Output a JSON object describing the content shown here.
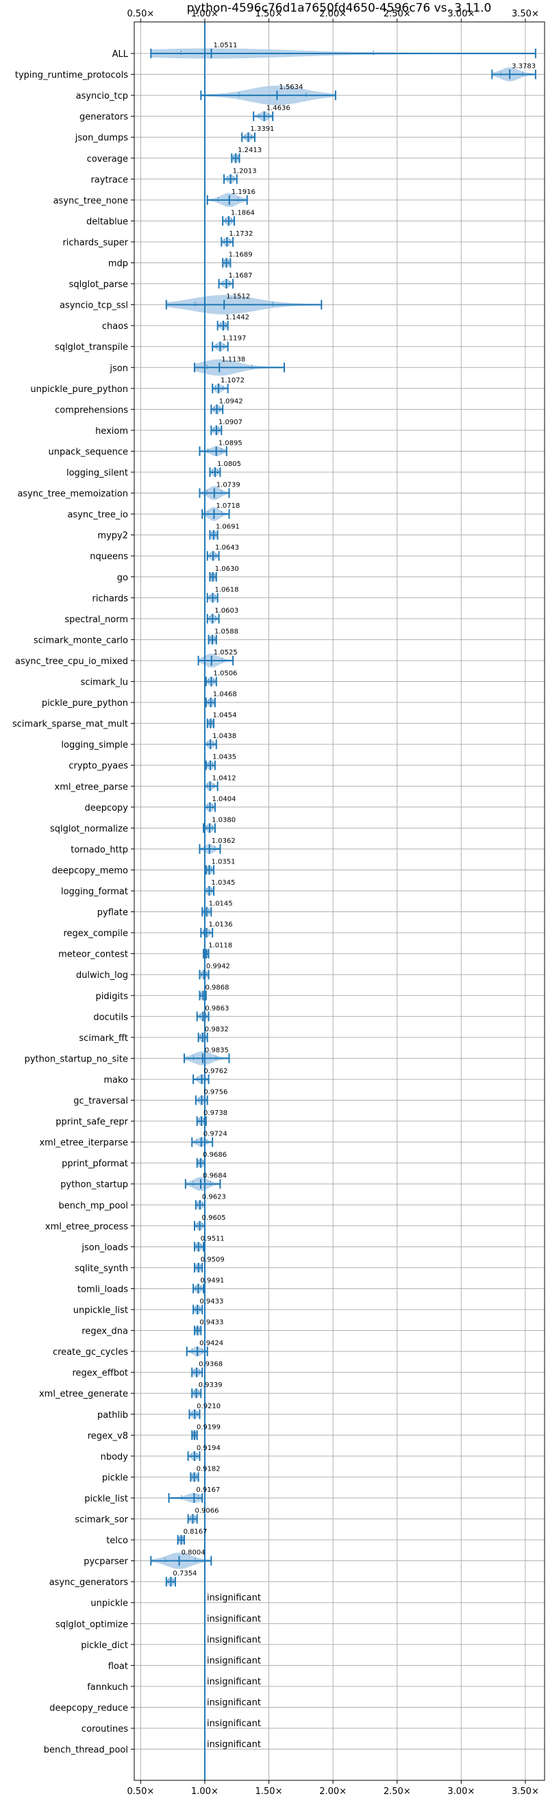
{
  "chart_data": {
    "type": "violin",
    "title": "python-4596c76d1a7650fd4650-4596c76 vs. 3.11.0",
    "xlim": [
      0.45,
      3.65
    ],
    "x_ticks": [
      0.5,
      1.0,
      1.5,
      2.0,
      2.5,
      3.0,
      3.5
    ],
    "x_tick_labels": [
      "0.50×",
      "1.00×",
      "1.50×",
      "2.00×",
      "2.50×",
      "3.00×",
      "3.50×"
    ],
    "reference_line": 1.0,
    "grid": true,
    "colors": {
      "violin": "#a6c8e6",
      "line": "#1f77b4",
      "grid": "#b0b0b0"
    },
    "insignificant_label": "insignificant",
    "benchmarks": [
      {
        "name": "ALL",
        "value": 1.0511,
        "label": "1.0511",
        "min": 0.58,
        "max": 3.58,
        "width": 0.07
      },
      {
        "name": "typing_runtime_protocols",
        "value": 3.3783,
        "label": "3.3783",
        "min": 3.24,
        "max": 3.58,
        "width": 0.1
      },
      {
        "name": "asyncio_tcp",
        "value": 1.5634,
        "label": "1.5634",
        "min": 0.97,
        "max": 2.02,
        "width": 0.3
      },
      {
        "name": "generators",
        "value": 1.4636,
        "label": "1.4636",
        "min": 1.38,
        "max": 1.53,
        "width": 0.07
      },
      {
        "name": "json_dumps",
        "value": 1.3391,
        "label": "1.3391",
        "min": 1.29,
        "max": 1.39,
        "width": 0.05
      },
      {
        "name": "coverage",
        "value": 1.2413,
        "label": "1.2413",
        "min": 1.21,
        "max": 1.27,
        "width": 0.04
      },
      {
        "name": "raytrace",
        "value": 1.2013,
        "label": "1.2013",
        "min": 1.15,
        "max": 1.25,
        "width": 0.05
      },
      {
        "name": "async_tree_none",
        "value": 1.1916,
        "label": "1.1916",
        "min": 1.02,
        "max": 1.33,
        "width": 0.1
      },
      {
        "name": "deltablue",
        "value": 1.1864,
        "label": "1.1864",
        "min": 1.14,
        "max": 1.23,
        "width": 0.05
      },
      {
        "name": "richards_super",
        "value": 1.1732,
        "label": "1.1732",
        "min": 1.13,
        "max": 1.22,
        "width": 0.05
      },
      {
        "name": "mdp",
        "value": 1.1689,
        "label": "1.1689",
        "min": 1.14,
        "max": 1.2,
        "width": 0.04
      },
      {
        "name": "sqlglot_parse",
        "value": 1.1687,
        "label": "1.1687",
        "min": 1.11,
        "max": 1.22,
        "width": 0.05
      },
      {
        "name": "asyncio_tcp_ssl",
        "value": 1.1512,
        "label": "1.1512",
        "min": 0.7,
        "max": 1.91,
        "width": 0.35
      },
      {
        "name": "chaos",
        "value": 1.1442,
        "label": "1.1442",
        "min": 1.1,
        "max": 1.18,
        "width": 0.04
      },
      {
        "name": "sqlglot_transpile",
        "value": 1.1197,
        "label": "1.1197",
        "min": 1.06,
        "max": 1.18,
        "width": 0.05
      },
      {
        "name": "json",
        "value": 1.1138,
        "label": "1.1138",
        "min": 0.92,
        "max": 1.62,
        "width": 0.12
      },
      {
        "name": "unpickle_pure_python",
        "value": 1.1072,
        "label": "1.1072",
        "min": 1.06,
        "max": 1.18,
        "width": 0.04
      },
      {
        "name": "comprehensions",
        "value": 1.0942,
        "label": "1.0942",
        "min": 1.05,
        "max": 1.14,
        "width": 0.05
      },
      {
        "name": "hexiom",
        "value": 1.0907,
        "label": "1.0907",
        "min": 1.05,
        "max": 1.13,
        "width": 0.05
      },
      {
        "name": "unpack_sequence",
        "value": 1.0895,
        "label": "1.0895",
        "min": 0.96,
        "max": 1.17,
        "width": 0.06
      },
      {
        "name": "logging_silent",
        "value": 1.0805,
        "label": "1.0805",
        "min": 1.04,
        "max": 1.12,
        "width": 0.05
      },
      {
        "name": "async_tree_memoization",
        "value": 1.0739,
        "label": "1.0739",
        "min": 0.96,
        "max": 1.19,
        "width": 0.1
      },
      {
        "name": "async_tree_io",
        "value": 1.0718,
        "label": "1.0718",
        "min": 0.98,
        "max": 1.19,
        "width": 0.1
      },
      {
        "name": "mypy2",
        "value": 1.0691,
        "label": "1.0691",
        "min": 1.04,
        "max": 1.1,
        "width": 0.04
      },
      {
        "name": "nqueens",
        "value": 1.0643,
        "label": "1.0643",
        "min": 1.02,
        "max": 1.11,
        "width": 0.05
      },
      {
        "name": "go",
        "value": 1.063,
        "label": "1.0630",
        "min": 1.04,
        "max": 1.09,
        "width": 0.04
      },
      {
        "name": "richards",
        "value": 1.0618,
        "label": "1.0618",
        "min": 1.02,
        "max": 1.1,
        "width": 0.05
      },
      {
        "name": "spectral_norm",
        "value": 1.0603,
        "label": "1.0603",
        "min": 1.02,
        "max": 1.11,
        "width": 0.05
      },
      {
        "name": "scimark_monte_carlo",
        "value": 1.0588,
        "label": "1.0588",
        "min": 1.03,
        "max": 1.09,
        "width": 0.04
      },
      {
        "name": "async_tree_cpu_io_mixed",
        "value": 1.0525,
        "label": "1.0525",
        "min": 0.95,
        "max": 1.22,
        "width": 0.1
      },
      {
        "name": "scimark_lu",
        "value": 1.0506,
        "label": "1.0506",
        "min": 1.01,
        "max": 1.09,
        "width": 0.04
      },
      {
        "name": "pickle_pure_python",
        "value": 1.0468,
        "label": "1.0468",
        "min": 1.01,
        "max": 1.08,
        "width": 0.04
      },
      {
        "name": "scimark_sparse_mat_mult",
        "value": 1.0454,
        "label": "1.0454",
        "min": 1.02,
        "max": 1.07,
        "width": 0.04
      },
      {
        "name": "logging_simple",
        "value": 1.0438,
        "label": "1.0438",
        "min": 1.0,
        "max": 1.09,
        "width": 0.04
      },
      {
        "name": "crypto_pyaes",
        "value": 1.0435,
        "label": "1.0435",
        "min": 1.01,
        "max": 1.08,
        "width": 0.04
      },
      {
        "name": "xml_etree_parse",
        "value": 1.0412,
        "label": "1.0412",
        "min": 1.0,
        "max": 1.1,
        "width": 0.05
      },
      {
        "name": "deepcopy",
        "value": 1.0404,
        "label": "1.0404",
        "min": 1.0,
        "max": 1.08,
        "width": 0.04
      },
      {
        "name": "sqlglot_normalize",
        "value": 1.038,
        "label": "1.0380",
        "min": 0.99,
        "max": 1.08,
        "width": 0.05
      },
      {
        "name": "tornado_http",
        "value": 1.0362,
        "label": "1.0362",
        "min": 0.96,
        "max": 1.12,
        "width": 0.07
      },
      {
        "name": "deepcopy_memo",
        "value": 1.0351,
        "label": "1.0351",
        "min": 1.01,
        "max": 1.07,
        "width": 0.04
      },
      {
        "name": "logging_format",
        "value": 1.0345,
        "label": "1.0345",
        "min": 1.0,
        "max": 1.07,
        "width": 0.04
      },
      {
        "name": "pyflate",
        "value": 1.0145,
        "label": "1.0145",
        "min": 0.98,
        "max": 1.05,
        "width": 0.04
      },
      {
        "name": "regex_compile",
        "value": 1.0136,
        "label": "1.0136",
        "min": 0.97,
        "max": 1.06,
        "width": 0.04
      },
      {
        "name": "meteor_contest",
        "value": 1.0118,
        "label": "1.0118",
        "min": 0.99,
        "max": 1.03,
        "width": 0.03
      },
      {
        "name": "dulwich_log",
        "value": 0.9942,
        "label": "0.9942",
        "min": 0.96,
        "max": 1.03,
        "width": 0.04
      },
      {
        "name": "pidigits",
        "value": 0.9868,
        "label": "0.9868",
        "min": 0.96,
        "max": 1.01,
        "width": 0.04
      },
      {
        "name": "docutils",
        "value": 0.9863,
        "label": "0.9863",
        "min": 0.94,
        "max": 1.03,
        "width": 0.05
      },
      {
        "name": "scimark_fft",
        "value": 0.9832,
        "label": "0.9832",
        "min": 0.95,
        "max": 1.02,
        "width": 0.04
      },
      {
        "name": "python_startup_no_site",
        "value": 0.9835,
        "label": "0.9835",
        "min": 0.84,
        "max": 1.19,
        "width": 0.1
      },
      {
        "name": "mako",
        "value": 0.9762,
        "label": "0.9762",
        "min": 0.91,
        "max": 1.03,
        "width": 0.06
      },
      {
        "name": "gc_traversal",
        "value": 0.9756,
        "label": "0.9756",
        "min": 0.93,
        "max": 1.02,
        "width": 0.05
      },
      {
        "name": "pprint_safe_repr",
        "value": 0.9738,
        "label": "0.9738",
        "min": 0.94,
        "max": 1.01,
        "width": 0.04
      },
      {
        "name": "xml_etree_iterparse",
        "value": 0.9724,
        "label": "0.9724",
        "min": 0.9,
        "max": 1.06,
        "width": 0.06
      },
      {
        "name": "pprint_pformat",
        "value": 0.9686,
        "label": "0.9686",
        "min": 0.94,
        "max": 1.0,
        "width": 0.04
      },
      {
        "name": "python_startup",
        "value": 0.9684,
        "label": "0.9684",
        "min": 0.85,
        "max": 1.12,
        "width": 0.1
      },
      {
        "name": "bench_mp_pool",
        "value": 0.9623,
        "label": "0.9623",
        "min": 0.93,
        "max": 1.0,
        "width": 0.04
      },
      {
        "name": "xml_etree_process",
        "value": 0.9605,
        "label": "0.9605",
        "min": 0.92,
        "max": 1.0,
        "width": 0.04
      },
      {
        "name": "json_loads",
        "value": 0.9511,
        "label": "0.9511",
        "min": 0.92,
        "max": 0.99,
        "width": 0.04
      },
      {
        "name": "sqlite_synth",
        "value": 0.9509,
        "label": "0.9509",
        "min": 0.92,
        "max": 0.98,
        "width": 0.04
      },
      {
        "name": "tomli_loads",
        "value": 0.9491,
        "label": "0.9491",
        "min": 0.91,
        "max": 0.99,
        "width": 0.05
      },
      {
        "name": "unpickle_list",
        "value": 0.9433,
        "label": "0.9433",
        "min": 0.91,
        "max": 0.98,
        "width": 0.04
      },
      {
        "name": "regex_dna",
        "value": 0.9433,
        "label": "0.9433",
        "min": 0.92,
        "max": 0.97,
        "width": 0.04
      },
      {
        "name": "create_gc_cycles",
        "value": 0.9424,
        "label": "0.9424",
        "min": 0.86,
        "max": 1.02,
        "width": 0.06
      },
      {
        "name": "regex_effbot",
        "value": 0.9368,
        "label": "0.9368",
        "min": 0.9,
        "max": 0.98,
        "width": 0.04
      },
      {
        "name": "xml_etree_generate",
        "value": 0.9339,
        "label": "0.9339",
        "min": 0.9,
        "max": 0.97,
        "width": 0.04
      },
      {
        "name": "pathlib",
        "value": 0.921,
        "label": "0.9210",
        "min": 0.88,
        "max": 0.96,
        "width": 0.05
      },
      {
        "name": "regex_v8",
        "value": 0.9199,
        "label": "0.9199",
        "min": 0.9,
        "max": 0.94,
        "width": 0.03
      },
      {
        "name": "nbody",
        "value": 0.9194,
        "label": "0.9194",
        "min": 0.87,
        "max": 0.96,
        "width": 0.05
      },
      {
        "name": "pickle",
        "value": 0.9182,
        "label": "0.9182",
        "min": 0.89,
        "max": 0.95,
        "width": 0.04
      },
      {
        "name": "pickle_list",
        "value": 0.9167,
        "label": "0.9167",
        "min": 0.72,
        "max": 0.98,
        "width": 0.05
      },
      {
        "name": "scimark_sor",
        "value": 0.9066,
        "label": "0.9066",
        "min": 0.87,
        "max": 0.94,
        "width": 0.04
      },
      {
        "name": "telco",
        "value": 0.8167,
        "label": "0.8167",
        "min": 0.79,
        "max": 0.84,
        "width": 0.04
      },
      {
        "name": "pycparser",
        "value": 0.8004,
        "label": "0.8004",
        "min": 0.58,
        "max": 1.05,
        "width": 0.12
      },
      {
        "name": "async_generators",
        "value": 0.7354,
        "label": "0.7354",
        "min": 0.7,
        "max": 0.77,
        "width": 0.04
      },
      {
        "name": "unpickle",
        "value": null,
        "label": "insignificant"
      },
      {
        "name": "sqlglot_optimize",
        "value": null,
        "label": "insignificant"
      },
      {
        "name": "pickle_dict",
        "value": null,
        "label": "insignificant"
      },
      {
        "name": "float",
        "value": null,
        "label": "insignificant"
      },
      {
        "name": "fannkuch",
        "value": null,
        "label": "insignificant"
      },
      {
        "name": "deepcopy_reduce",
        "value": null,
        "label": "insignificant"
      },
      {
        "name": "coroutines",
        "value": null,
        "label": "insignificant"
      },
      {
        "name": "bench_thread_pool",
        "value": null,
        "label": "insignificant"
      }
    ]
  }
}
